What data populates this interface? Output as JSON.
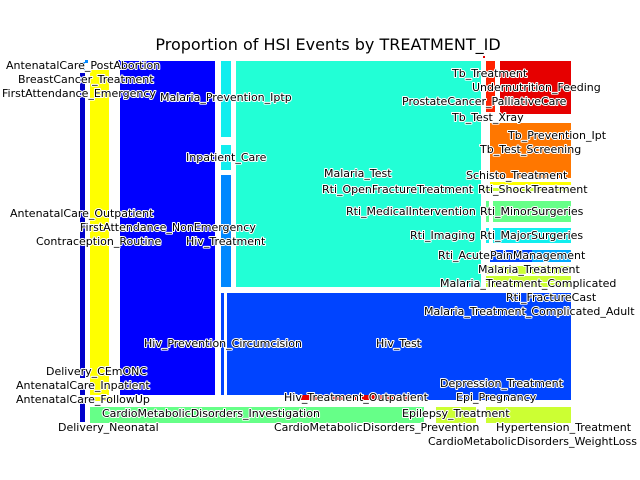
{
  "chart_data": {
    "type": "treemap",
    "title": "Proportion of HSI Events by TREATMENT_ID",
    "categories": [
      "AntenatalCare_Outpatient",
      "AntenatalCare_Inpatient",
      "AntenatalCare_FollowUp",
      "AntenatalCare_PostAbortion",
      "Contraception_Routine",
      "FirstAttendance_NonEmergency",
      "FirstAttendance_Emergency",
      "BreastCancer_Treatment",
      "Malaria_Prevention_Iptp",
      "Inpatient_Care",
      "Hiv_Treatment",
      "Malaria_Test",
      "Hiv_Prevention_Circumcision",
      "Hiv_Test",
      "ProstateCancer_PalliativeCare",
      "Tb_Treatment",
      "Undernutrition_Feeding",
      "Tb_Test_Xray",
      "Tb_Test_Screening",
      "Schisto_Treatment",
      "Tb_Prevention_Ipt",
      "Rti_ShockTreatment",
      "Rti_OpenFractureTreatment",
      "Rti_MedicalIntervention",
      "Rti_MinorSurgeries",
      "Rti_Imaging",
      "Rti_MajorSurgeries",
      "Rti_AcutePainManagement",
      "Rti_FractureCast",
      "Malaria_Treatment",
      "Malaria_Treatment_Complicated",
      "Malaria_Treatment_Complicated_Adult",
      "Delivery_CEmONC",
      "Delivery_Neonatal",
      "CardioMetabolicDisorders_Investigation",
      "CardioMetabolicDisorders_Prevention",
      "Hiv_Treatment_Outpatient",
      "Epi_Pregnancy",
      "Epilepsy_Treatment",
      "Depression_Treatment",
      "CardioMetabolicDisorders_WeightLoss",
      "Hypertension_Treatment"
    ]
  },
  "colors": {
    "dark_blue": "#0000cc",
    "blue": "#0000ff",
    "yellow": "#ffff00",
    "aqua": "#22ffd6",
    "cyan": "#11eeee",
    "azure": "#0088ff",
    "royal_blue": "#0044ff",
    "red": "#e60000",
    "red_orange": "#ff2200",
    "orange": "#ff7700",
    "green": "#66ff88",
    "lime": "#ccff33",
    "sky": "#00aaff"
  }
}
